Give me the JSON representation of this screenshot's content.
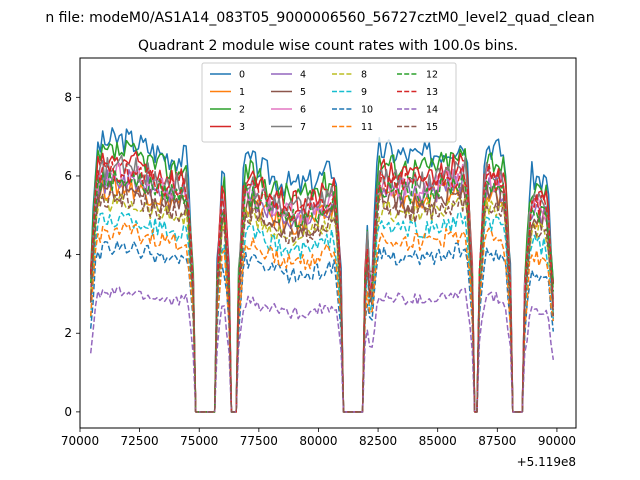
{
  "suptitle": "n file: modeM0/AS1A14_083T05_9000006560_56727cztM0_level2_quad_clean",
  "chart_data": {
    "type": "line",
    "title": "Quadrant 2 module wise count rates with 100.0s bins.",
    "xlabel": "",
    "ylabel": "",
    "x_offset_label": "+5.119e8",
    "xlim": [
      70000,
      90800
    ],
    "ylim": [
      -0.41,
      9.0
    ],
    "xticks": [
      70000,
      72500,
      75000,
      77500,
      80000,
      82500,
      85000,
      87500,
      90000
    ],
    "xtick_labels": [
      "70000",
      "72500",
      "75000",
      "77500",
      "80000",
      "82500",
      "85000",
      "87500",
      "90000"
    ],
    "yticks": [
      0,
      2,
      4,
      6,
      8
    ],
    "ytick_labels": [
      "0",
      "2",
      "4",
      "6",
      "8"
    ],
    "legend_position": "upper-center",
    "legend_columns": 4,
    "x_range": [
      70450,
      89850
    ],
    "x_step": 100,
    "observation_windows": [
      [
        70450,
        74750
      ],
      [
        75750,
        76250
      ],
      [
        76650,
        80950
      ],
      [
        81950,
        82150
      ],
      [
        82250,
        86450
      ],
      [
        86750,
        88050
      ],
      [
        88650,
        89850
      ]
    ],
    "series": [
      {
        "name": "0",
        "color": "#1f77b4",
        "dashed": false,
        "level": 6.4
      },
      {
        "name": "1",
        "color": "#ff7f0e",
        "dashed": false,
        "level": 5.3
      },
      {
        "name": "2",
        "color": "#2ca02c",
        "dashed": false,
        "level": 6.1
      },
      {
        "name": "3",
        "color": "#d62728",
        "dashed": false,
        "level": 5.9
      },
      {
        "name": "4",
        "color": "#9467bd",
        "dashed": false,
        "level": 5.45
      },
      {
        "name": "5",
        "color": "#8c564b",
        "dashed": false,
        "level": 5.2
      },
      {
        "name": "6",
        "color": "#e377c2",
        "dashed": false,
        "level": 5.6
      },
      {
        "name": "7",
        "color": "#7f7f7f",
        "dashed": false,
        "level": 5.75
      },
      {
        "name": "8",
        "color": "#bcbd22",
        "dashed": true,
        "level": 4.95
      },
      {
        "name": "9",
        "color": "#17becf",
        "dashed": true,
        "level": 4.55
      },
      {
        "name": "10",
        "color": "#1f77b4",
        "dashed": true,
        "level": 3.85
      },
      {
        "name": "11",
        "color": "#ff7f0e",
        "dashed": true,
        "level": 4.25
      },
      {
        "name": "12",
        "color": "#2ca02c",
        "dashed": true,
        "level": 5.5
      },
      {
        "name": "13",
        "color": "#d62728",
        "dashed": true,
        "level": 5.65
      },
      {
        "name": "14",
        "color": "#9467bd",
        "dashed": true,
        "level": 2.8
      },
      {
        "name": "15",
        "color": "#8c564b",
        "dashed": true,
        "level": 5.0
      }
    ]
  }
}
